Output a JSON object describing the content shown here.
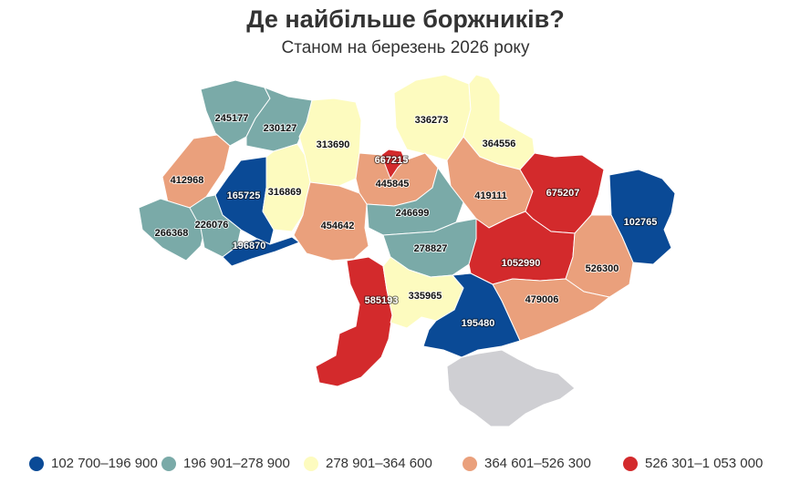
{
  "title": "Де найбільше боржників?",
  "subtitle": "Станом на березень 2026 року",
  "legend": [
    {
      "label": "102 700–196 900",
      "color": "#0a4a96"
    },
    {
      "label": "196 901–278 900",
      "color": "#7aaaa8"
    },
    {
      "label": "278 901–364 600",
      "color": "#fdfbbf"
    },
    {
      "label": "364 601–526 300",
      "color": "#eaa07c"
    },
    {
      "label": "526 301–1 053 000",
      "color": "#d32a2c"
    }
  ],
  "no_data_color": "#cfcfd3",
  "regions": [
    {
      "value": "245177",
      "class": 1
    },
    {
      "value": "230127",
      "class": 1
    },
    {
      "value": "313690",
      "class": 2
    },
    {
      "value": "336273",
      "class": 2
    },
    {
      "value": "364556",
      "class": 2
    },
    {
      "value": "667215",
      "class": 4
    },
    {
      "value": "412968",
      "class": 3
    },
    {
      "value": "165725",
      "class": 0
    },
    {
      "value": "316869",
      "class": 2
    },
    {
      "value": "445845",
      "class": 3
    },
    {
      "value": "419111",
      "class": 3
    },
    {
      "value": "675207",
      "class": 4
    },
    {
      "value": "266368",
      "class": 1
    },
    {
      "value": "226076",
      "class": 1
    },
    {
      "value": "196870",
      "class": 0
    },
    {
      "value": "454642",
      "class": 3
    },
    {
      "value": "246699",
      "class": 1
    },
    {
      "value": "102765",
      "class": 0
    },
    {
      "value": "278827",
      "class": 1
    },
    {
      "value": "1052990",
      "class": 4
    },
    {
      "value": "526300",
      "class": 3
    },
    {
      "value": "585193",
      "class": 4
    },
    {
      "value": "335965",
      "class": 2
    },
    {
      "value": "479006",
      "class": 3
    },
    {
      "value": "195480",
      "class": 0
    }
  ]
}
